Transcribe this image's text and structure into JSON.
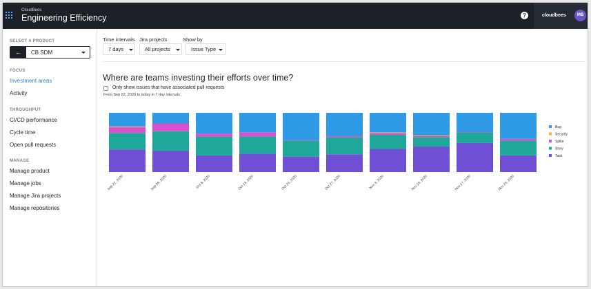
{
  "header": {
    "brand_small": "CloudBees",
    "brand": "Engineering Efficiency",
    "help": "?",
    "username": "cloudbees",
    "avatar_initials": "MB"
  },
  "sidebar": {
    "select_product_label": "SELECT A PRODUCT",
    "back": "←",
    "product": "CB SDM",
    "focus_label": "FOCUS",
    "focus_items": [
      "Investment areas",
      "Activity"
    ],
    "throughput_label": "THROUGHPUT",
    "throughput_items": [
      "CI/CD performance",
      "Cycle time",
      "Open pull requests"
    ],
    "manage_label": "MANAGE",
    "manage_items": [
      "Manage product",
      "Manage jobs",
      "Manage Jira projects",
      "Manage repositories"
    ]
  },
  "filters": {
    "time_label": "Time intervals",
    "time_value": "7 days",
    "jira_label": "Jira projects",
    "jira_value": "All projects",
    "show_label": "Show by",
    "show_value": "Issue Type"
  },
  "main": {
    "title": "Where are teams investing their efforts over time?",
    "checkbox_label": "Only show issues that have associated pull requests",
    "subtext": "From Sep 22, 2020 to today in 7 day intervals"
  },
  "colors": {
    "Task": "#6f4fd4",
    "Story": "#1fa799",
    "Spike": "#d94fd2",
    "Security": "#e8b63a",
    "Bug": "#2e9ae6"
  },
  "chart_data": {
    "type": "bar",
    "stacked": "100%",
    "categories": [
      "Sep 22, 2020",
      "Sep 29, 2020",
      "Oct 6, 2020",
      "Oct 13, 2020",
      "Oct 20, 2020",
      "Oct 27, 2020",
      "Nov 3, 2020",
      "Nov 10, 2020",
      "Nov 17, 2020",
      "Nov 24, 2020"
    ],
    "series": [
      {
        "name": "Task",
        "values": [
          38,
          36,
          28,
          31,
          26,
          30,
          39,
          43,
          49,
          28
        ]
      },
      {
        "name": "Story",
        "values": [
          28,
          33,
          32,
          29,
          27,
          29,
          24,
          16,
          18,
          25
        ]
      },
      {
        "name": "Spike",
        "values": [
          10,
          13,
          5,
          7,
          1,
          2,
          3,
          2,
          1,
          3
        ]
      },
      {
        "name": "Security",
        "values": [
          1,
          0,
          0,
          0,
          0,
          0,
          1,
          1,
          0,
          0
        ]
      },
      {
        "name": "Bug",
        "values": [
          23,
          18,
          35,
          33,
          46,
          39,
          33,
          38,
          32,
          44
        ]
      }
    ],
    "legend": [
      "Bug",
      "Security",
      "Spike",
      "Story",
      "Task"
    ],
    "legend_position": "right",
    "grid": true
  }
}
